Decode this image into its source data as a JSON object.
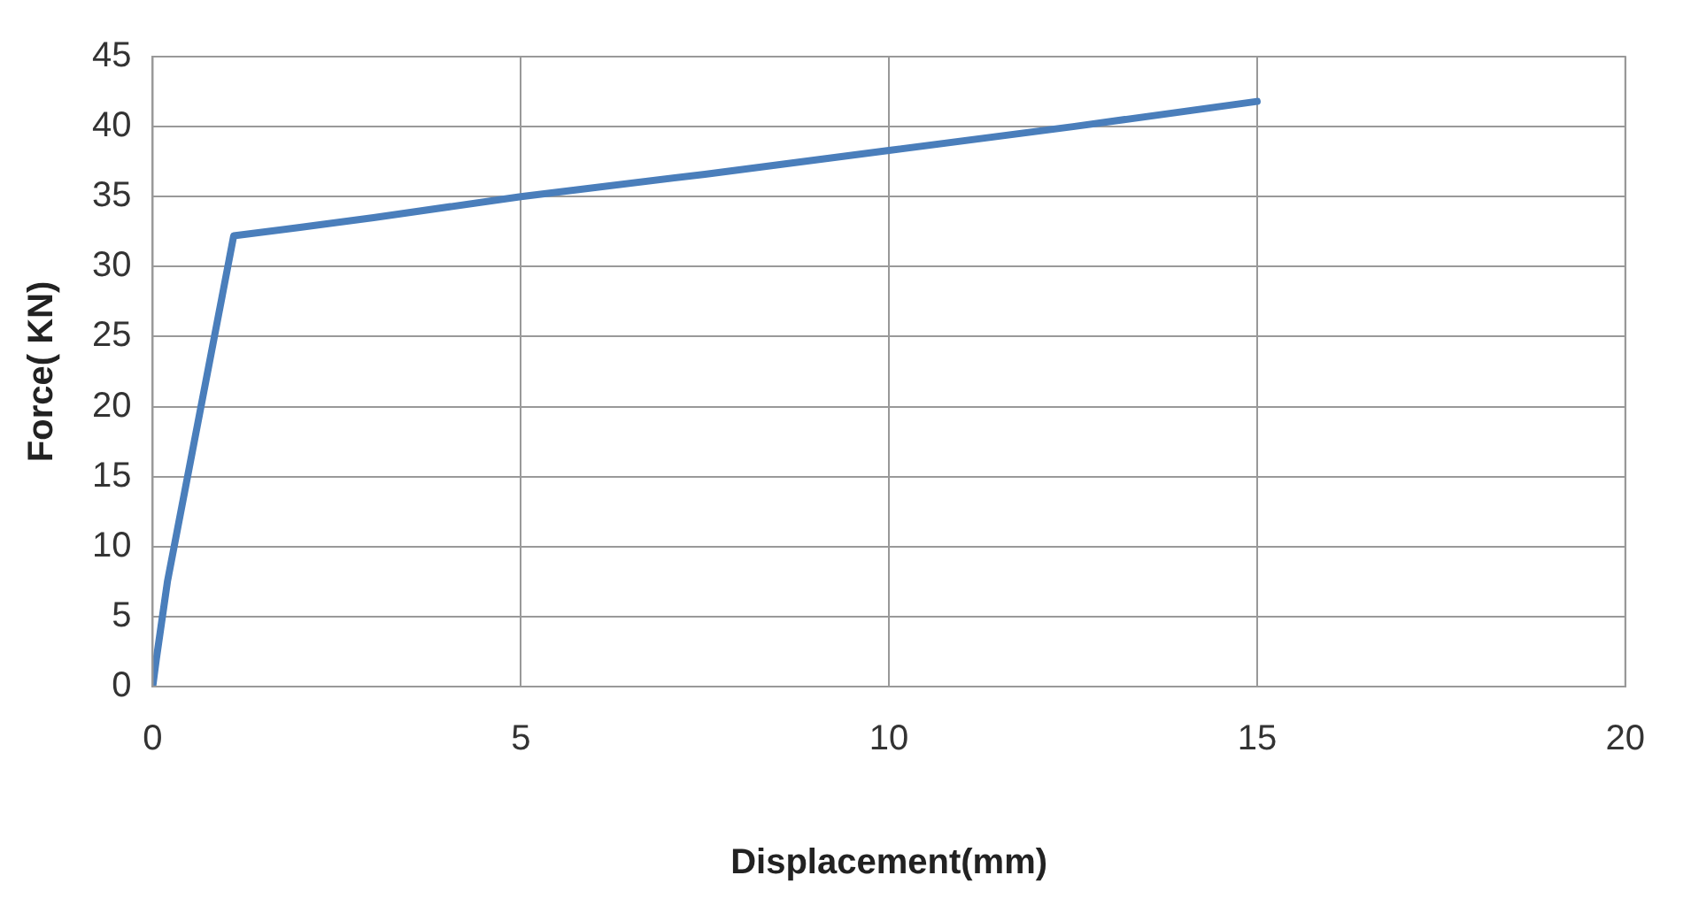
{
  "chart_data": {
    "type": "line",
    "xlabel": "Displacement(mm)",
    "ylabel": "Force( KN)",
    "x": [
      0,
      0.05,
      0.2,
      1.1,
      2,
      3,
      5,
      7.5,
      10,
      12.5,
      15
    ],
    "series": [
      {
        "color": "#4a7ebb",
        "values": [
          0,
          2,
          7.5,
          32.2,
          32.8,
          33.5,
          35,
          36.6,
          38.3,
          40,
          41.8
        ]
      }
    ],
    "xlim": [
      0,
      20
    ],
    "xticks": [
      0,
      5,
      10,
      15,
      20
    ],
    "ylim": [
      0,
      45
    ],
    "yticks": [
      0,
      5,
      10,
      15,
      20,
      25,
      30,
      35,
      40,
      45
    ],
    "grid": true,
    "legend": false,
    "marker": "none",
    "line_style": "solid"
  }
}
